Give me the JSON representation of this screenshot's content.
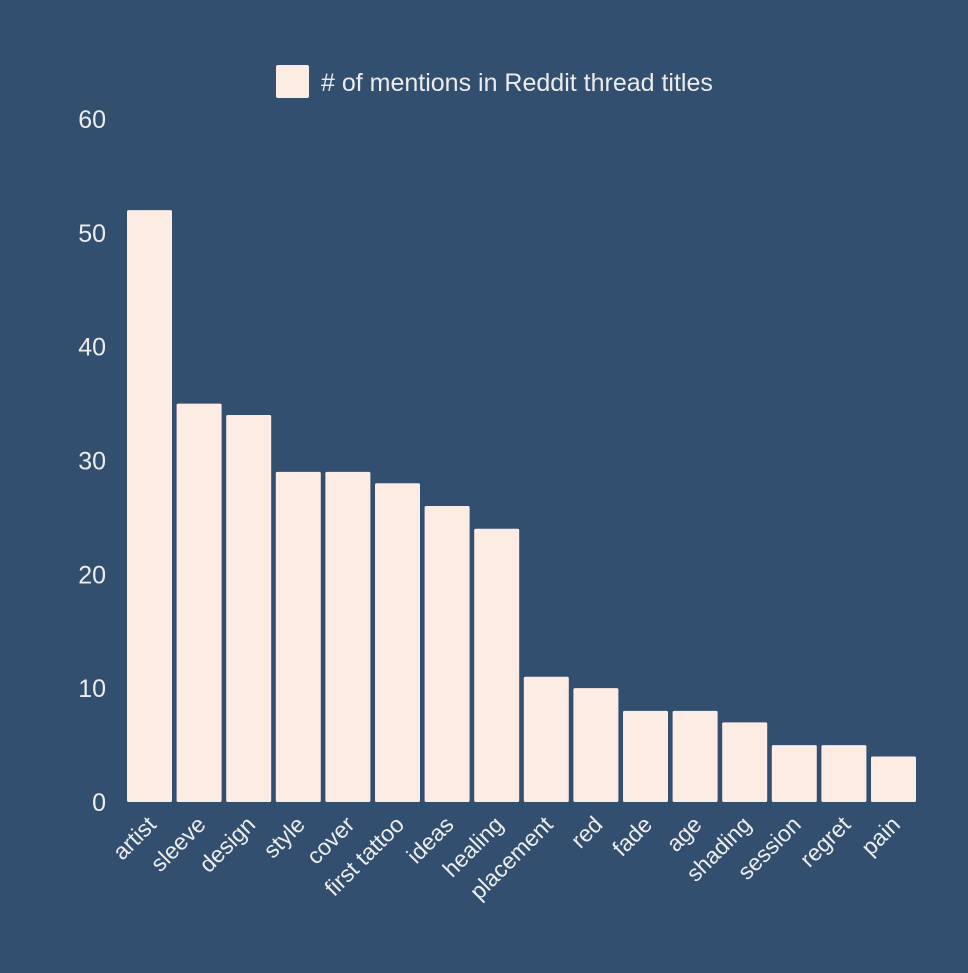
{
  "chart_data": {
    "type": "bar",
    "categories": [
      "artist",
      "sleeve",
      "design",
      "style",
      "cover",
      "first tattoo",
      "ideas",
      "healing",
      "placement",
      "red",
      "fade",
      "age",
      "shading",
      "session",
      "regret",
      "pain"
    ],
    "series": [
      {
        "name": "# of mentions in Reddit thread titles",
        "values": [
          52,
          35,
          34,
          29,
          29,
          28,
          26,
          24,
          11,
          10,
          8,
          8,
          7,
          5,
          5,
          4
        ]
      }
    ],
    "yticks": [
      "0",
      "10",
      "20",
      "30",
      "40",
      "50",
      "60"
    ],
    "ylim": [
      0,
      60
    ],
    "xlabel": "",
    "ylabel": "",
    "grid": false,
    "legend": "top-center",
    "colors": {
      "background": "#334f6f",
      "bar": "#fdece4",
      "text": "#ececec"
    }
  }
}
